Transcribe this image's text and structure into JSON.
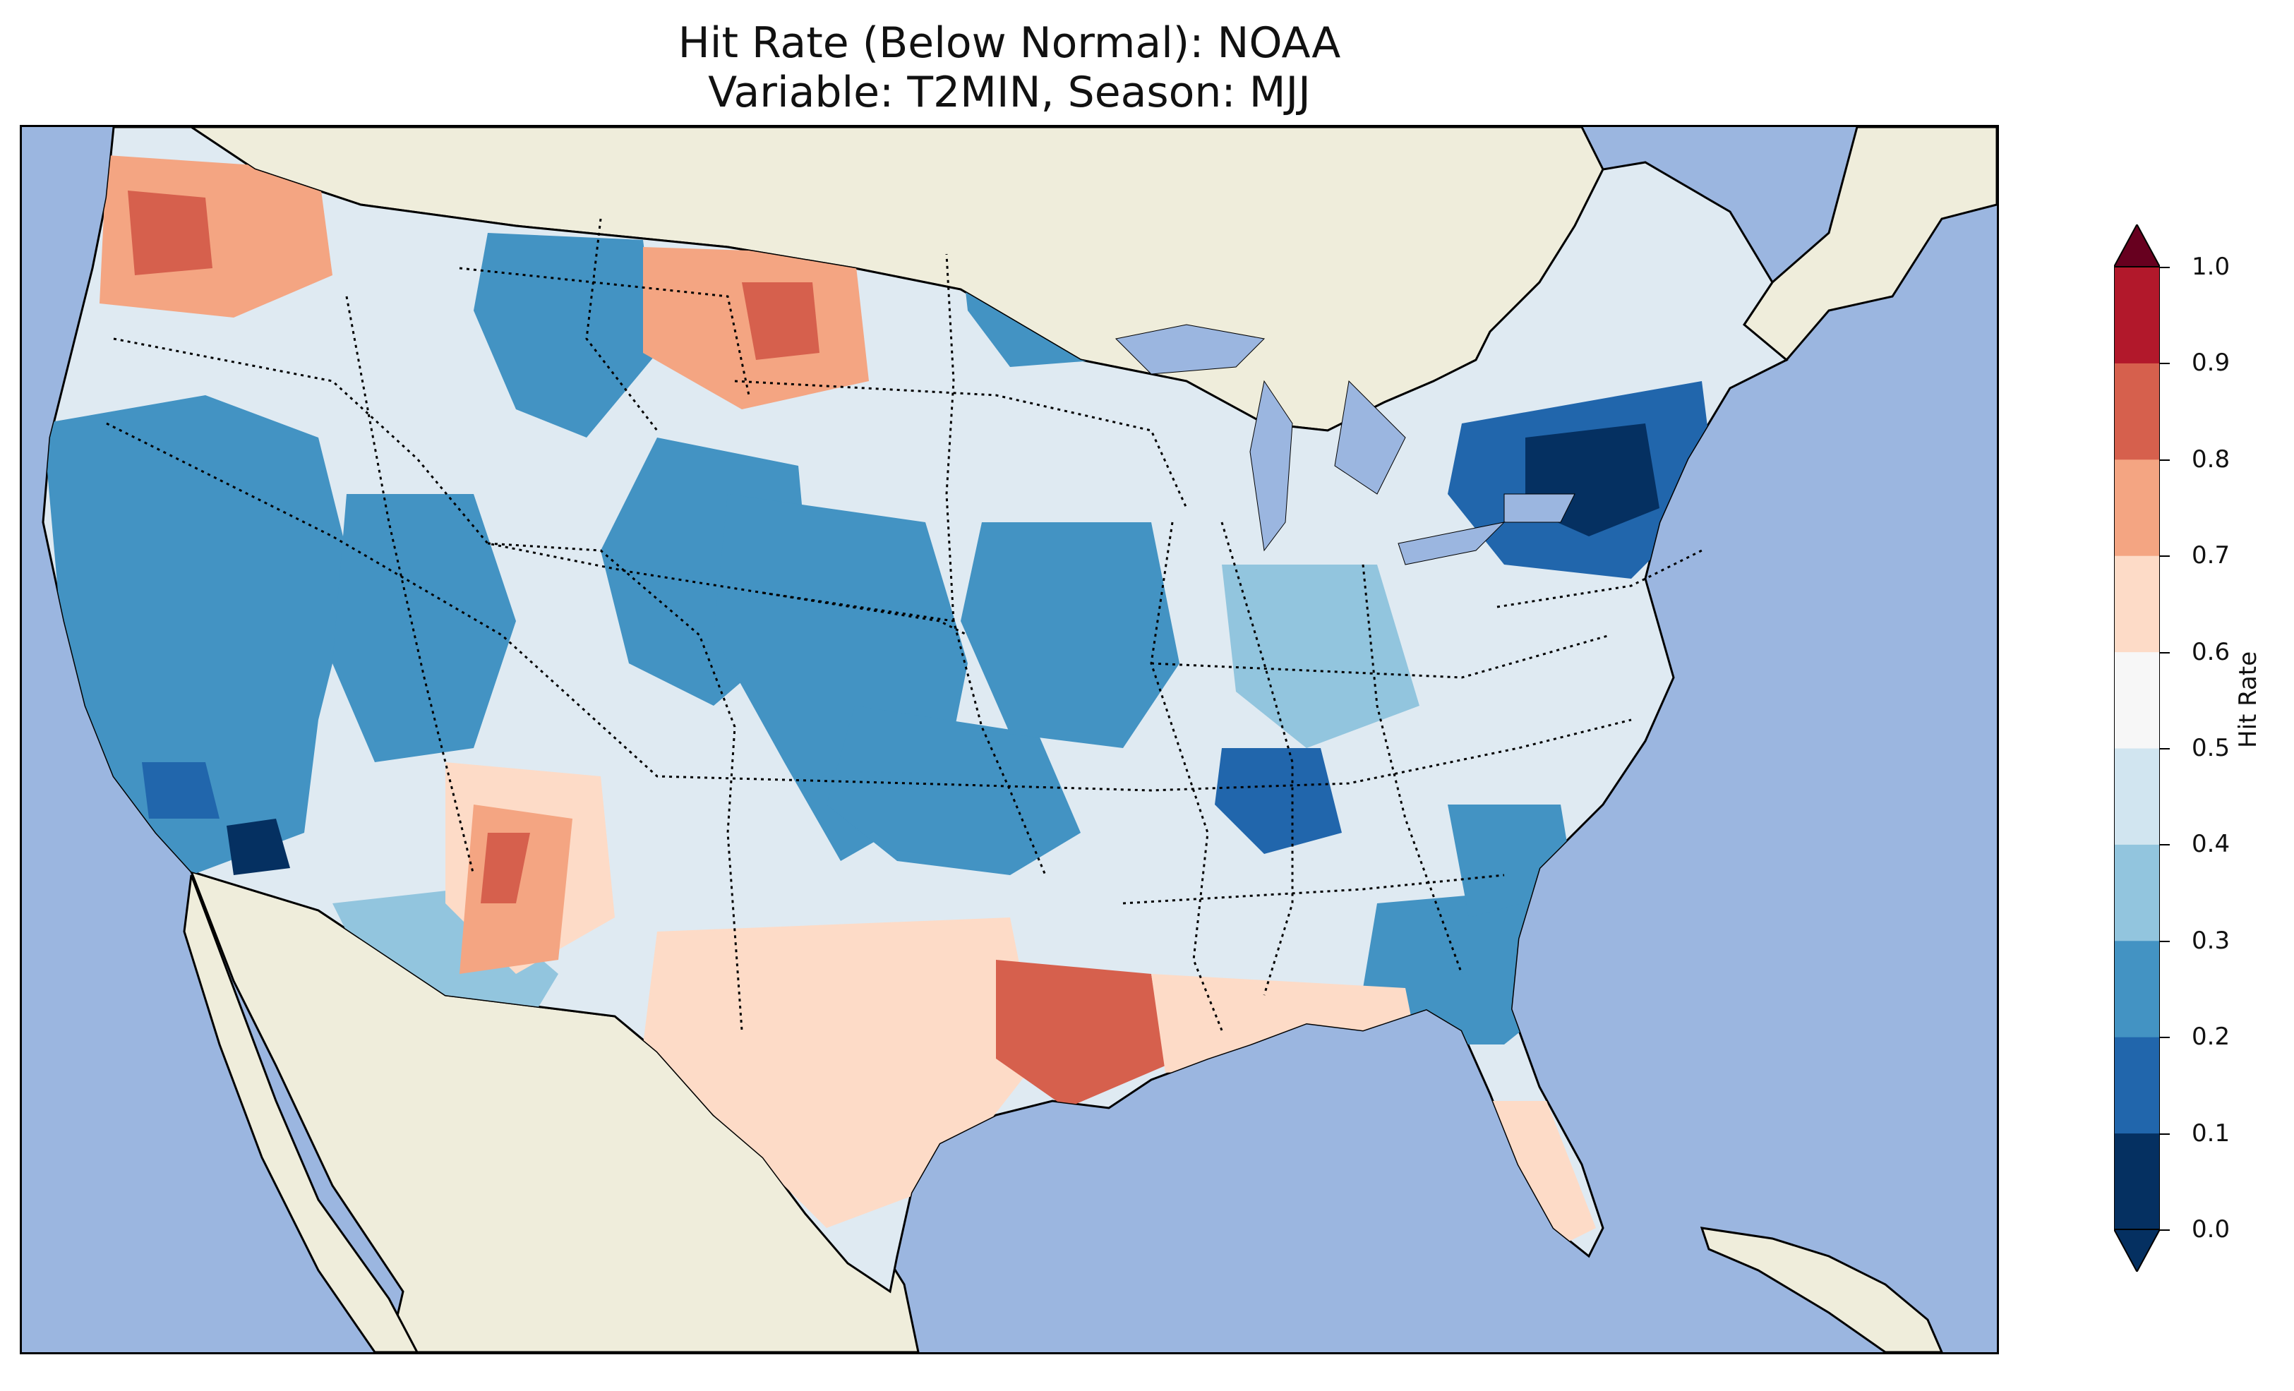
{
  "title": {
    "line1": "Hit Rate (Below Normal): NOAA",
    "line2": "Variable: T2MIN, Season: MJJ"
  },
  "colorbar": {
    "label": "Hit Rate",
    "ticks": [
      "0.0",
      "0.1",
      "0.2",
      "0.3",
      "0.4",
      "0.5",
      "0.6",
      "0.7",
      "0.8",
      "0.9",
      "1.0"
    ],
    "colors": [
      "#053061",
      "#2166ac",
      "#4393c3",
      "#92c5de",
      "#d1e5f0",
      "#f7f7f7",
      "#fddbc7",
      "#f4a582",
      "#d6604d",
      "#b2182b",
      "#67001f"
    ],
    "extend": "both"
  },
  "map": {
    "ocean_color": "#9bb6e0",
    "land_color": "#efeddb",
    "base_color": "#dfeaf2"
  }
}
